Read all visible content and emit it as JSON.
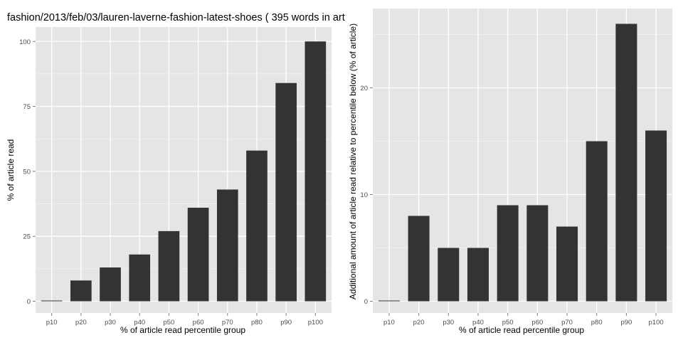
{
  "chart_data": [
    {
      "type": "bar",
      "title": "fashion/2013/feb/03/lauren-laverne-fashion-latest-shoes ( 395 words in art",
      "xlabel": "% of article read percentile group",
      "ylabel": "% of article read",
      "categories": [
        "p10",
        "p20",
        "p30",
        "p40",
        "p50",
        "p60",
        "p70",
        "p80",
        "p90",
        "p100"
      ],
      "values": [
        0,
        8,
        13,
        18,
        27,
        36,
        43,
        58,
        84,
        100
      ],
      "ylim": [
        0,
        105
      ],
      "yticks": [
        0,
        25,
        50,
        75,
        100
      ],
      "grid": true,
      "colors": {
        "bar": "#333333",
        "panel": "#e5e5e5",
        "grid_major": "#ffffff",
        "grid_minor": "#f2f2f2",
        "tick_text": "#4d4d4d"
      }
    },
    {
      "type": "bar",
      "title": "",
      "xlabel": "% of article read percentile group",
      "ylabel": "Additional amount of article read relative to percentile below (% of article)",
      "categories": [
        "p10",
        "p20",
        "p30",
        "p40",
        "p50",
        "p60",
        "p70",
        "p80",
        "p90",
        "p100"
      ],
      "values": [
        0,
        8,
        5,
        5,
        9,
        9,
        7,
        15,
        26,
        16
      ],
      "ylim": [
        0,
        27.3
      ],
      "yticks": [
        0,
        10,
        20
      ],
      "grid": true,
      "colors": {
        "bar": "#333333",
        "panel": "#e5e5e5",
        "grid_major": "#ffffff",
        "grid_minor": "#f2f2f2",
        "tick_text": "#4d4d4d"
      }
    }
  ]
}
